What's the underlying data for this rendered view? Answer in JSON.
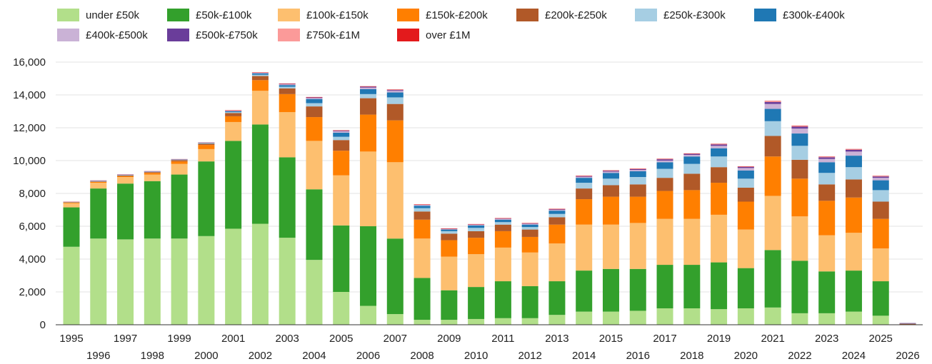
{
  "chart_data": {
    "type": "bar",
    "stacked": true,
    "legend_position": "top-left",
    "grid": true,
    "ylim": [
      0,
      16000
    ],
    "yticks": [
      "0",
      "2,000",
      "4,000",
      "6,000",
      "8,000",
      "10,000",
      "12,000",
      "14,000",
      "16,000"
    ],
    "ytick_values": [
      0,
      2000,
      4000,
      6000,
      8000,
      10000,
      12000,
      14000,
      16000
    ],
    "categories": [
      "1995",
      "1996",
      "1997",
      "1998",
      "1999",
      "2000",
      "2001",
      "2002",
      "2003",
      "2004",
      "2005",
      "2006",
      "2007",
      "2008",
      "2009",
      "2010",
      "2011",
      "2012",
      "2013",
      "2014",
      "2015",
      "2016",
      "2017",
      "2018",
      "2019",
      "2020",
      "2021",
      "2022",
      "2023",
      "2024",
      "2025",
      "2026"
    ],
    "series": [
      {
        "name": "under £50k",
        "color": "#b2df8a",
        "values": [
          4750,
          5250,
          5200,
          5250,
          5250,
          5400,
          5850,
          6150,
          5300,
          3950,
          2000,
          1150,
          650,
          300,
          300,
          350,
          400,
          400,
          600,
          800,
          800,
          850,
          1000,
          1000,
          950,
          1000,
          1050,
          700,
          700,
          800,
          550,
          0
        ]
      },
      {
        "name": "£50k-£100k",
        "color": "#33a02c",
        "values": [
          2400,
          3050,
          3400,
          3500,
          3900,
          4550,
          5350,
          6050,
          4900,
          4300,
          4050,
          4850,
          4600,
          2550,
          1800,
          1950,
          2250,
          1950,
          2050,
          2500,
          2600,
          2550,
          2650,
          2650,
          2850,
          2450,
          3500,
          3200,
          2550,
          2500,
          2100,
          0
        ]
      },
      {
        "name": "£100k-£150k",
        "color": "#fdbf6f",
        "values": [
          250,
          350,
          400,
          400,
          650,
          750,
          1150,
          2050,
          2750,
          2950,
          3050,
          4550,
          4650,
          2400,
          2050,
          2000,
          2050,
          2050,
          2300,
          2800,
          2700,
          2800,
          2800,
          2800,
          2900,
          2350,
          3300,
          2700,
          2200,
          2300,
          2000,
          0
        ]
      },
      {
        "name": "£150k-£200k",
        "color": "#ff7f00",
        "values": [
          50,
          50,
          50,
          100,
          150,
          250,
          350,
          650,
          1100,
          1450,
          1500,
          2250,
          2550,
          1150,
          1000,
          1000,
          1000,
          950,
          1150,
          1550,
          1700,
          1600,
          1700,
          1750,
          1950,
          1700,
          2400,
          2300,
          2100,
          2150,
          1800,
          0
        ]
      },
      {
        "name": "£200k-£250k",
        "color": "#b15928",
        "values": [
          20,
          30,
          50,
          50,
          80,
          80,
          200,
          250,
          350,
          650,
          650,
          1000,
          1000,
          500,
          400,
          400,
          400,
          450,
          450,
          650,
          700,
          750,
          800,
          1000,
          950,
          850,
          1250,
          1150,
          1000,
          1100,
          1050,
          70
        ]
      },
      {
        "name": "£250k-£300k",
        "color": "#a6cee3",
        "values": [
          10,
          20,
          20,
          20,
          20,
          30,
          50,
          80,
          100,
          200,
          200,
          250,
          400,
          200,
          150,
          200,
          150,
          150,
          200,
          350,
          400,
          450,
          550,
          600,
          650,
          550,
          900,
          850,
          700,
          750,
          700,
          10
        ]
      },
      {
        "name": "£300k-£400k",
        "color": "#1f78b4",
        "values": [
          10,
          20,
          20,
          20,
          20,
          30,
          50,
          80,
          100,
          250,
          250,
          300,
          300,
          150,
          100,
          150,
          150,
          150,
          200,
          300,
          350,
          350,
          400,
          450,
          500,
          500,
          750,
          750,
          650,
          700,
          600,
          10
        ]
      },
      {
        "name": "£400k-£500k",
        "color": "#cab2d6",
        "values": [
          5,
          10,
          10,
          10,
          10,
          10,
          30,
          30,
          50,
          60,
          80,
          100,
          100,
          50,
          30,
          50,
          50,
          50,
          50,
          70,
          80,
          80,
          100,
          100,
          150,
          150,
          300,
          300,
          200,
          250,
          150,
          5
        ]
      },
      {
        "name": "£500k-£750k",
        "color": "#6a3d9a",
        "values": [
          5,
          10,
          10,
          10,
          10,
          10,
          20,
          20,
          30,
          40,
          40,
          50,
          50,
          20,
          20,
          20,
          30,
          30,
          40,
          40,
          50,
          50,
          80,
          60,
          80,
          70,
          120,
          120,
          100,
          110,
          80,
          5
        ]
      },
      {
        "name": "£750k-£1M",
        "color": "#fb9a99",
        "values": [
          5,
          5,
          5,
          5,
          5,
          5,
          10,
          10,
          10,
          15,
          15,
          20,
          20,
          10,
          10,
          10,
          10,
          10,
          15,
          15,
          20,
          20,
          20,
          20,
          30,
          20,
          40,
          40,
          30,
          30,
          30,
          0
        ]
      },
      {
        "name": "over £1M",
        "color": "#e31a1c",
        "values": [
          0,
          0,
          0,
          0,
          0,
          0,
          5,
          5,
          5,
          10,
          10,
          10,
          10,
          5,
          5,
          5,
          5,
          5,
          5,
          5,
          5,
          10,
          10,
          10,
          10,
          10,
          20,
          20,
          15,
          15,
          10,
          0
        ]
      }
    ]
  }
}
